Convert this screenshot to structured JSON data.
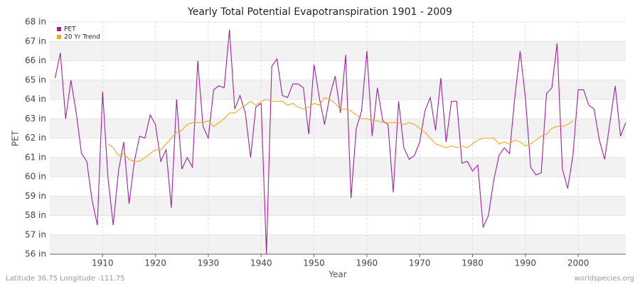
{
  "chart_data": {
    "type": "line",
    "title": "Yearly Total Potential Evapotranspiration 1901 - 2009",
    "x_label": "Year",
    "y_label": "PET",
    "footer_left": "Latitude 36.75 Longitude -111.75",
    "footer_right": "worldspecies.org",
    "xlim": [
      1900,
      2009
    ],
    "xticks": [
      1910,
      1920,
      1930,
      1940,
      1950,
      1960,
      1970,
      1980,
      1990,
      2000
    ],
    "ylim": [
      56,
      68
    ],
    "yticks": [
      {
        "value": 56,
        "label": "56 in"
      },
      {
        "value": 57,
        "label": "57 in"
      },
      {
        "value": 58,
        "label": "58 in"
      },
      {
        "value": 59,
        "label": "59 in"
      },
      {
        "value": 60,
        "label": "60 in"
      },
      {
        "value": 61,
        "label": "61 in"
      },
      {
        "value": 62,
        "label": "62 in"
      },
      {
        "value": 63,
        "label": "63 in"
      },
      {
        "value": 64,
        "label": "64 in"
      },
      {
        "value": 65,
        "label": "65 in"
      },
      {
        "value": 66,
        "label": "66 in"
      },
      {
        "value": 67,
        "label": "67 in"
      },
      {
        "value": 68,
        "label": "68 in"
      }
    ],
    "grid": true,
    "legend": "top-left",
    "x": [
      1901,
      1902,
      1903,
      1904,
      1905,
      1906,
      1907,
      1908,
      1909,
      1910,
      1911,
      1912,
      1913,
      1914,
      1915,
      1916,
      1917,
      1918,
      1919,
      1920,
      1921,
      1922,
      1923,
      1924,
      1925,
      1926,
      1927,
      1928,
      1929,
      1930,
      1931,
      1932,
      1933,
      1934,
      1935,
      1936,
      1937,
      1938,
      1939,
      1940,
      1941,
      1942,
      1943,
      1944,
      1945,
      1946,
      1947,
      1948,
      1949,
      1950,
      1951,
      1952,
      1953,
      1954,
      1955,
      1956,
      1957,
      1958,
      1959,
      1960,
      1961,
      1962,
      1963,
      1964,
      1965,
      1966,
      1967,
      1968,
      1969,
      1970,
      1971,
      1972,
      1973,
      1974,
      1975,
      1976,
      1977,
      1978,
      1979,
      1980,
      1981,
      1982,
      1983,
      1984,
      1985,
      1986,
      1987,
      1988,
      1989,
      1990,
      1991,
      1992,
      1993,
      1994,
      1995,
      1996,
      1997,
      1998,
      1999,
      2000,
      2001,
      2002,
      2003,
      2004,
      2005,
      2006,
      2007,
      2008,
      2009
    ],
    "series": [
      {
        "name": "PET",
        "color": "#a0229f",
        "values": [
          65.1,
          66.4,
          63.0,
          65.0,
          63.3,
          61.2,
          60.8,
          58.8,
          57.5,
          64.4,
          60.0,
          57.5,
          60.3,
          61.8,
          58.6,
          60.8,
          62.1,
          62.0,
          63.2,
          62.7,
          60.8,
          61.4,
          58.4,
          64.0,
          60.4,
          61.0,
          60.5,
          66.0,
          62.6,
          62.0,
          64.5,
          64.7,
          64.6,
          67.6,
          63.5,
          64.2,
          63.3,
          61.0,
          63.6,
          63.8,
          56.0,
          65.7,
          66.1,
          64.2,
          64.1,
          64.8,
          64.8,
          64.6,
          62.2,
          65.8,
          64.1,
          62.7,
          64.2,
          65.2,
          63.3,
          66.3,
          58.9,
          62.5,
          63.4,
          66.5,
          62.1,
          64.6,
          62.9,
          62.7,
          59.2,
          63.9,
          61.5,
          60.9,
          61.1,
          61.8,
          63.4,
          64.1,
          62.4,
          65.1,
          61.8,
          63.9,
          63.9,
          60.7,
          60.8,
          60.3,
          60.6,
          57.4,
          58.0,
          59.8,
          61.1,
          61.5,
          61.2,
          64.1,
          66.5,
          64.1,
          60.5,
          60.1,
          60.2,
          64.3,
          64.6,
          66.9,
          60.4,
          59.4,
          61.1,
          64.5,
          64.5,
          63.7,
          63.5,
          61.9,
          60.9,
          62.8,
          64.7,
          62.1,
          62.8
        ]
      },
      {
        "name": "20 Yr Trend",
        "color": "#f5a623",
        "values": [
          null,
          null,
          null,
          null,
          null,
          null,
          null,
          null,
          null,
          null,
          61.7,
          61.5,
          61.1,
          61.2,
          60.9,
          60.8,
          60.8,
          61.0,
          61.2,
          61.4,
          61.4,
          61.7,
          62.0,
          62.3,
          62.4,
          62.7,
          62.8,
          62.8,
          62.8,
          62.9,
          62.6,
          62.8,
          63.0,
          63.3,
          63.3,
          63.5,
          63.7,
          63.9,
          63.7,
          63.9,
          64.0,
          63.9,
          63.9,
          63.9,
          63.7,
          63.8,
          63.6,
          63.5,
          63.6,
          63.8,
          63.7,
          64.1,
          64.0,
          63.8,
          63.5,
          63.5,
          63.4,
          63.2,
          63.0,
          63.0,
          62.9,
          62.9,
          62.8,
          62.8,
          62.8,
          62.8,
          62.7,
          62.8,
          62.7,
          62.5,
          62.3,
          62.0,
          61.7,
          61.6,
          61.5,
          61.6,
          61.5,
          61.6,
          61.5,
          61.7,
          61.9,
          62.0,
          62.0,
          62.0,
          61.7,
          61.8,
          61.7,
          61.9,
          61.8,
          61.6,
          61.7,
          61.9,
          62.1,
          62.2,
          62.5,
          62.6,
          62.6,
          62.7,
          62.9,
          null,
          null,
          null,
          null,
          null,
          null,
          null,
          null,
          null,
          null
        ]
      }
    ]
  }
}
